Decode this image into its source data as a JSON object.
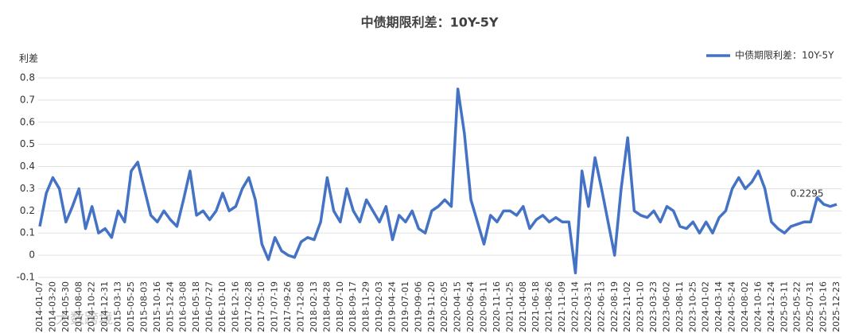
{
  "chart_data": {
    "type": "line",
    "title": "中债期限利差：10Y-5Y",
    "y_label": "利差",
    "watermark": "大数跨境",
    "categories": [
      "2014-01-07",
      null,
      "2014-03-20",
      null,
      "2014-05-30",
      null,
      "2014-08-08",
      null,
      "2014-10-22",
      null,
      "2014-12-31",
      null,
      "2015-03-13",
      null,
      "2015-05-25",
      null,
      "2015-08-03",
      null,
      "2015-10-16",
      null,
      "2015-12-24",
      null,
      "2016-03-08",
      null,
      "2016-05-18",
      null,
      "2016-07-27",
      null,
      "2016-10-10",
      null,
      "2016-12-16",
      null,
      "2017-02-28",
      null,
      "2017-05-10",
      null,
      "2017-07-19",
      null,
      "2017-09-26",
      null,
      "2017-12-08",
      null,
      "2018-02-13",
      null,
      "2018-04-28",
      null,
      "2018-07-10",
      null,
      "2018-09-17",
      null,
      "2018-11-29",
      null,
      "2019-02-03",
      null,
      "2019-04-24",
      null,
      "2019-07-01",
      null,
      "2019-09-06",
      null,
      "2019-11-20",
      null,
      "2020-02-05",
      null,
      "2020-04-15",
      null,
      "2020-06-24",
      null,
      "2020-09-11",
      null,
      "2020-11-16",
      null,
      "2021-01-25",
      null,
      "2021-04-08",
      null,
      "2021-06-18",
      null,
      "2021-08-26",
      null,
      "2021-11-09",
      null,
      "2022-01-14",
      null,
      "2022-03-31",
      null,
      "2022-06-13",
      null,
      "2022-08-19",
      null,
      "2022-11-02",
      null,
      "2023-01-10",
      null,
      "2023-03-23",
      null,
      "2023-06-02",
      null,
      "2023-08-11",
      null,
      "2023-10-25",
      null,
      "2024-01-02",
      null,
      "2024-03-14",
      null,
      "2024-05-24",
      null,
      "2024-08-02",
      null,
      "2024-10-16",
      null,
      "2024-12-24",
      null,
      "2025-03-11",
      null,
      "2025-05-22",
      null,
      "2025-07-31",
      null,
      "2025-10-16",
      null,
      "2025-12-23"
    ],
    "series": [
      {
        "name": "中债期限利差：10Y-5Y",
        "color": "#4472c4",
        "values": [
          0.13,
          0.28,
          0.35,
          0.3,
          0.15,
          0.22,
          0.3,
          0.12,
          0.22,
          0.1,
          0.12,
          0.08,
          0.2,
          0.15,
          0.38,
          0.42,
          0.3,
          0.18,
          0.15,
          0.2,
          0.16,
          0.13,
          0.25,
          0.38,
          0.18,
          0.2,
          0.16,
          0.2,
          0.28,
          0.2,
          0.22,
          0.3,
          0.35,
          0.25,
          0.05,
          -0.02,
          0.08,
          0.02,
          0.0,
          -0.01,
          0.06,
          0.08,
          0.07,
          0.15,
          0.35,
          0.2,
          0.15,
          0.3,
          0.2,
          0.15,
          0.25,
          0.2,
          0.15,
          0.22,
          0.07,
          0.18,
          0.15,
          0.2,
          0.12,
          0.1,
          0.2,
          0.22,
          0.25,
          0.22,
          0.75,
          0.55,
          0.25,
          0.15,
          0.05,
          0.18,
          0.15,
          0.2,
          0.2,
          0.18,
          0.22,
          0.12,
          0.16,
          0.18,
          0.15,
          0.17,
          0.15,
          0.15,
          -0.08,
          0.38,
          0.22,
          0.44,
          0.3,
          0.15,
          0.0,
          0.3,
          0.53,
          0.2,
          0.18,
          0.17,
          0.2,
          0.15,
          0.22,
          0.2,
          0.13,
          0.12,
          0.15,
          0.1,
          0.15,
          0.1,
          0.17,
          0.2,
          0.3,
          0.35,
          0.3,
          0.33,
          0.38,
          0.3,
          0.15,
          0.12,
          0.1,
          0.13,
          0.14,
          0.15,
          0.15,
          0.26,
          0.23,
          0.22,
          0.2295
        ],
        "value_labels": [
          null,
          null,
          null,
          null,
          null,
          null,
          null,
          null,
          null,
          null,
          null,
          null,
          null,
          null,
          null,
          null,
          null,
          null,
          null,
          null,
          null,
          null,
          null,
          null,
          null,
          null,
          null,
          null,
          null,
          null,
          null,
          null,
          null,
          null,
          null,
          null,
          null,
          null,
          null,
          null,
          null,
          null,
          null,
          null,
          null,
          null,
          null,
          null,
          null,
          null,
          null,
          null,
          null,
          null,
          null,
          null,
          null,
          null,
          null,
          null,
          null,
          null,
          null,
          null,
          null,
          null,
          null,
          null,
          null,
          null,
          null,
          null,
          null,
          null,
          null,
          null,
          null,
          null,
          null,
          null,
          null,
          null,
          null,
          null,
          null,
          null,
          null,
          null,
          null,
          null,
          null,
          null,
          null,
          null,
          null,
          null,
          null,
          null,
          null,
          null,
          null,
          null,
          null,
          null,
          null,
          null,
          null,
          null,
          null,
          null,
          null,
          null,
          null,
          null,
          null,
          null,
          null,
          null,
          null,
          null,
          "0.2295"
        ]
      }
    ],
    "ylim": [
      -0.1,
      0.8
    ],
    "yticks": [
      -0.1,
      0,
      0.1,
      0.2,
      0.3,
      0.4,
      0.5,
      0.6,
      0.7,
      0.8
    ],
    "grid": true,
    "legend": "top-right"
  }
}
